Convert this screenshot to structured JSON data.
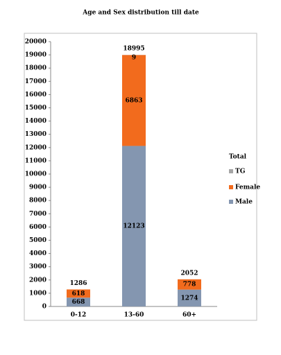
{
  "chart_data": {
    "type": "stacked-bar",
    "title": "Age and Sex distribution till date",
    "categories": [
      "0-12",
      "13-60",
      "60+"
    ],
    "series": [
      {
        "name": "Male",
        "color": "#8496b0",
        "values": [
          668,
          12123,
          1274
        ]
      },
      {
        "name": "Female",
        "color": "#f26b1d",
        "values": [
          618,
          6863,
          778
        ]
      },
      {
        "name": "TG",
        "color": "#a5a5a5",
        "values": [
          null,
          9,
          null
        ]
      }
    ],
    "totals": [
      1286,
      18995,
      2052
    ],
    "legend_title": "Total",
    "ylim": [
      0,
      20000
    ],
    "yticks": [
      0,
      1000,
      2000,
      3000,
      4000,
      5000,
      6000,
      7000,
      8000,
      9000,
      10000,
      11000,
      12000,
      13000,
      14000,
      15000,
      16000,
      17000,
      18000,
      19000,
      20000
    ]
  }
}
